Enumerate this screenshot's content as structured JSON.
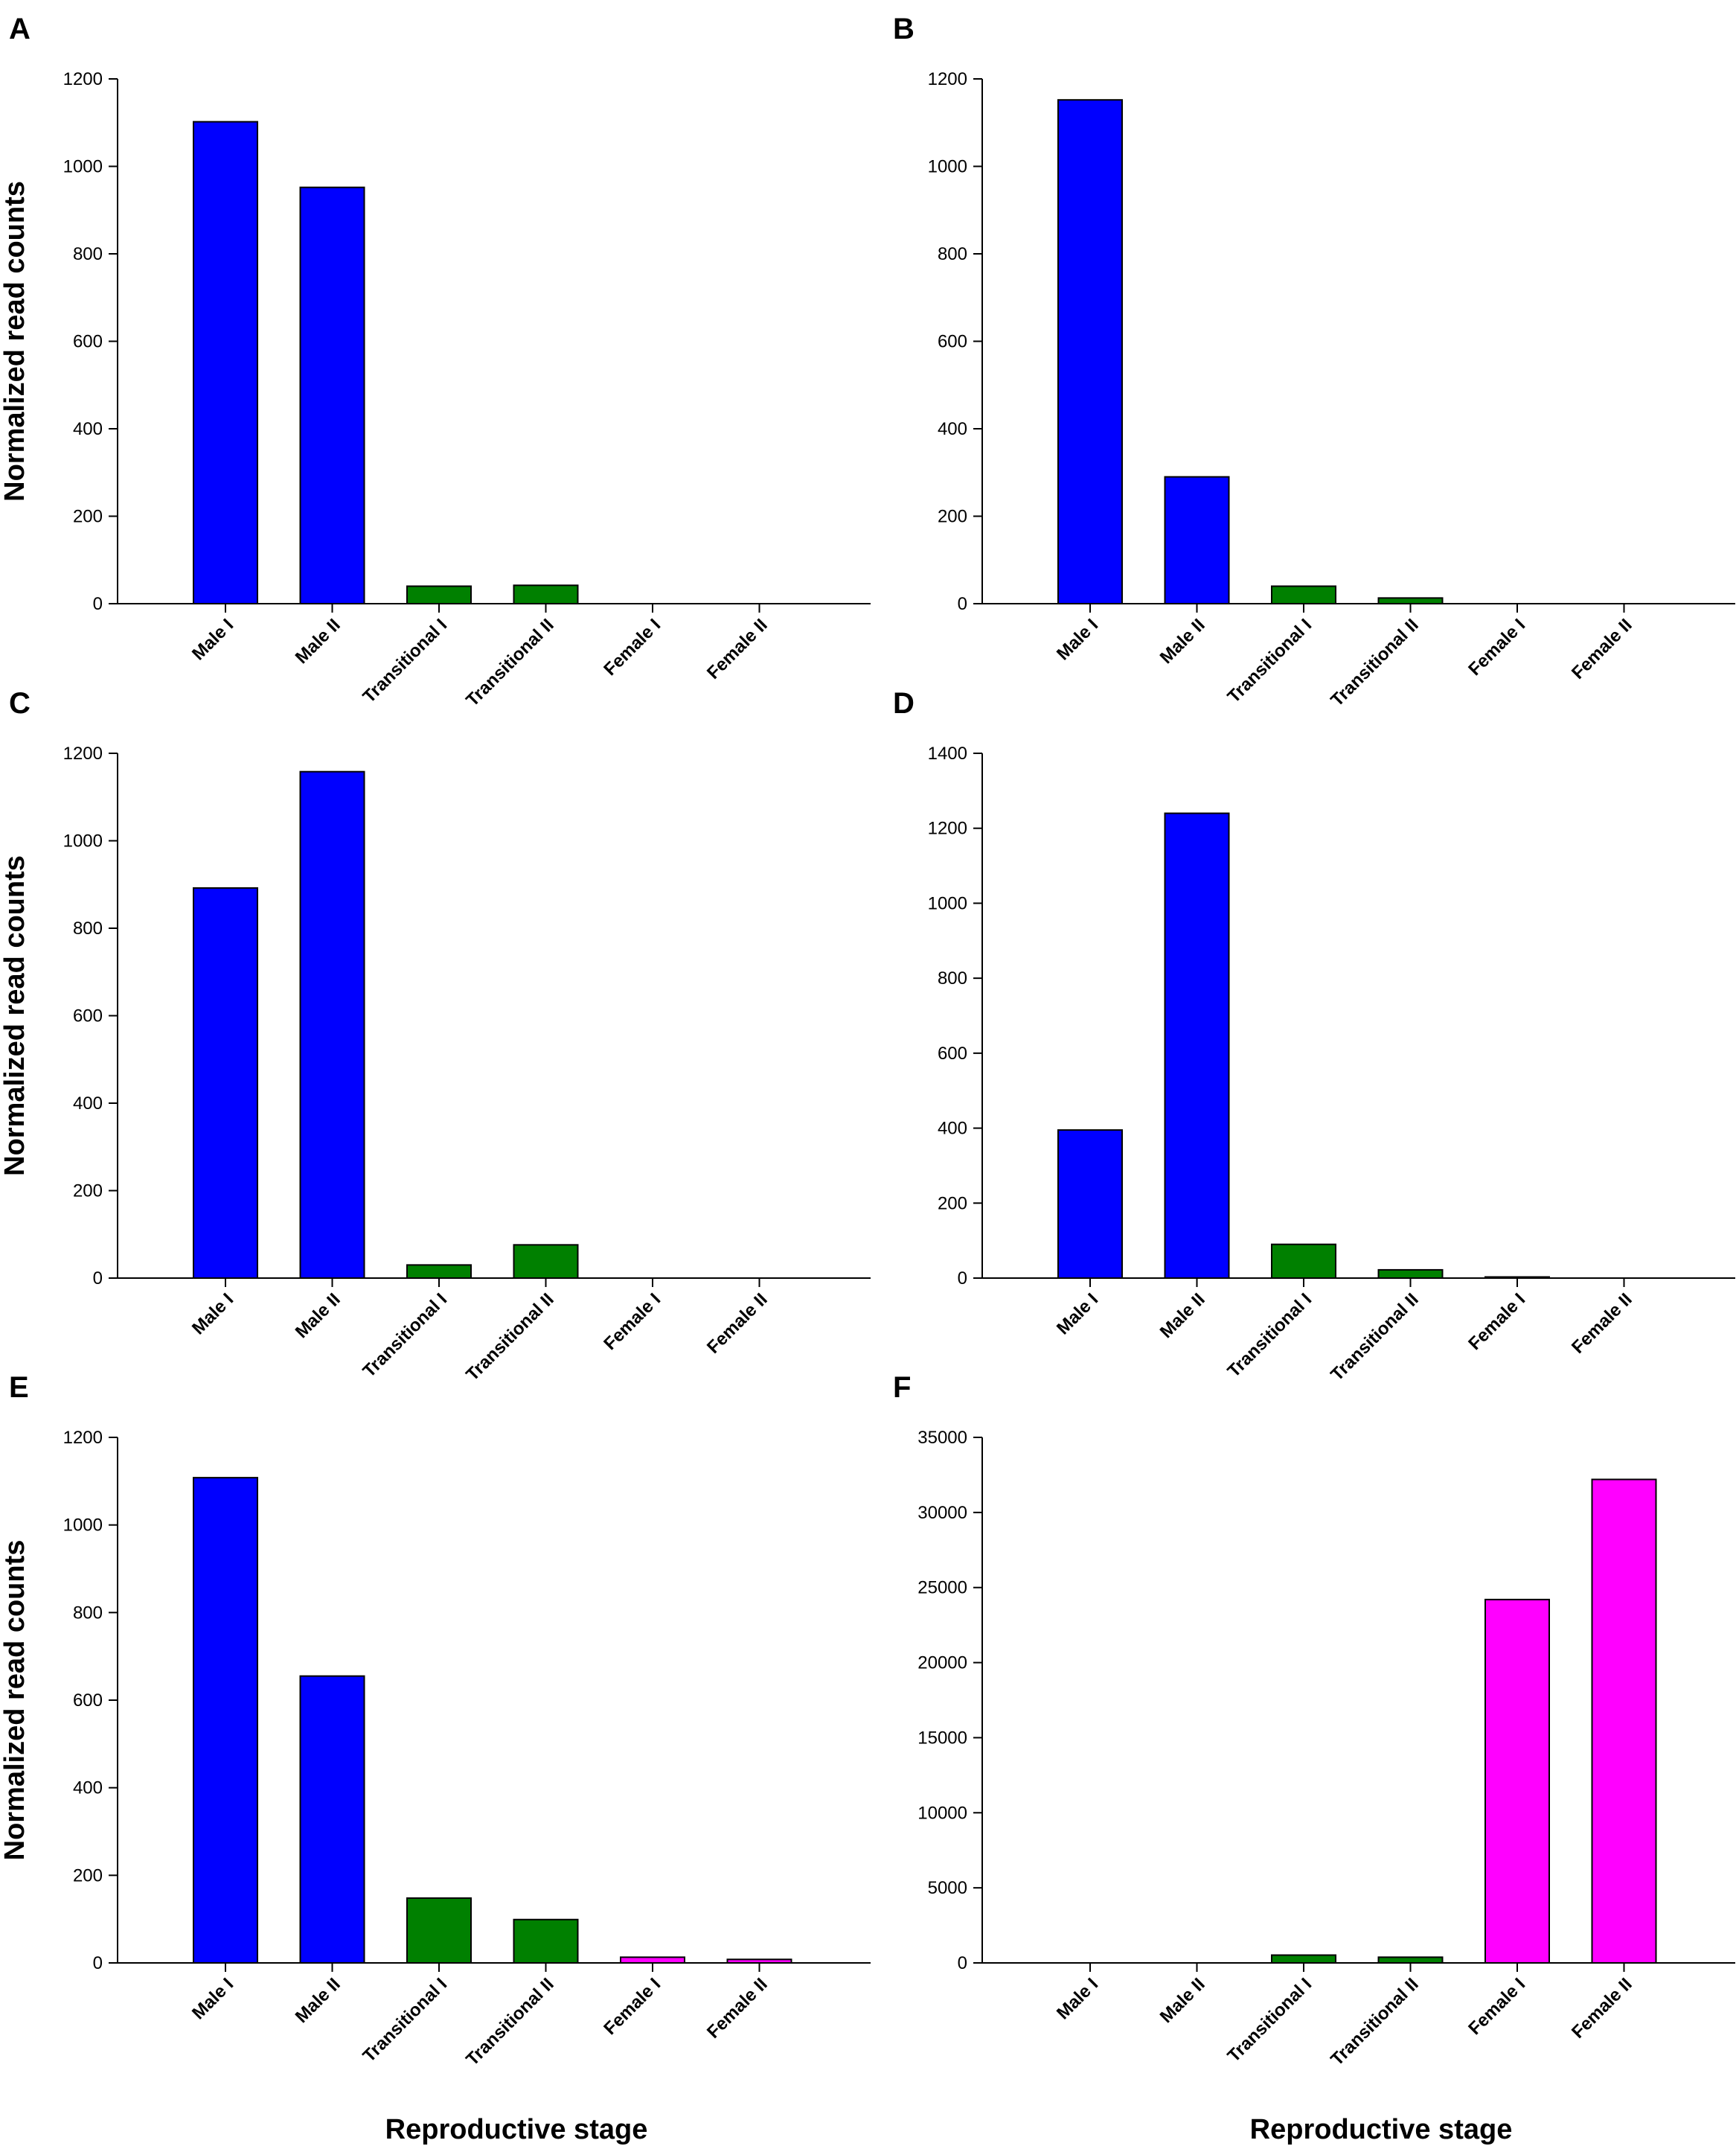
{
  "figure": {
    "xlabel": "Reproductive stage",
    "ylabel": "Normalized read counts"
  },
  "colors": {
    "male": "#0000ff",
    "transitional": "#008000",
    "female": "#ff00ff"
  },
  "chart_data": [
    {
      "panel": "A",
      "type": "bar",
      "categories": [
        "Male I",
        "Male II",
        "Transitional I",
        "Transitional II",
        "Female I",
        "Female II"
      ],
      "values": [
        1102,
        952,
        40,
        42,
        0,
        0
      ],
      "ylim": [
        0,
        1200
      ],
      "yticks": [
        0,
        200,
        400,
        600,
        800,
        1000,
        1200
      ],
      "ylabel": "Normalized read counts",
      "xlabel": "",
      "grid": false
    },
    {
      "panel": "B",
      "type": "bar",
      "categories": [
        "Male I",
        "Male II",
        "Transitional I",
        "Transitional II",
        "Female I",
        "Female II"
      ],
      "values": [
        1152,
        290,
        40,
        13,
        0,
        0
      ],
      "ylim": [
        0,
        1200
      ],
      "yticks": [
        0,
        200,
        400,
        600,
        800,
        1000,
        1200
      ],
      "ylabel": "",
      "xlabel": "",
      "grid": false
    },
    {
      "panel": "C",
      "type": "bar",
      "categories": [
        "Male I",
        "Male II",
        "Transitional I",
        "Transitional II",
        "Female I",
        "Female II"
      ],
      "values": [
        892,
        1158,
        30,
        76,
        0,
        0
      ],
      "ylim": [
        0,
        1200
      ],
      "yticks": [
        0,
        200,
        400,
        600,
        800,
        1000,
        1200
      ],
      "ylabel": "Normalized read counts",
      "xlabel": "",
      "grid": false
    },
    {
      "panel": "D",
      "type": "bar",
      "categories": [
        "Male I",
        "Male II",
        "Transitional I",
        "Transitional II",
        "Female I",
        "Female II"
      ],
      "values": [
        395,
        1240,
        90,
        22,
        3,
        0
      ],
      "ylim": [
        0,
        1400
      ],
      "yticks": [
        0,
        200,
        400,
        600,
        800,
        1000,
        1200,
        1400
      ],
      "ylabel": "",
      "xlabel": "",
      "grid": false
    },
    {
      "panel": "E",
      "type": "bar",
      "categories": [
        "Male I",
        "Male II",
        "Transitional I",
        "Transitional II",
        "Female I",
        "Female II"
      ],
      "values": [
        1108,
        655,
        148,
        99,
        13,
        8
      ],
      "ylim": [
        0,
        1200
      ],
      "yticks": [
        0,
        200,
        400,
        600,
        800,
        1000,
        1200
      ],
      "ylabel": "Normalized read counts",
      "xlabel": "Reproductive stage",
      "grid": false
    },
    {
      "panel": "F",
      "type": "bar",
      "categories": [
        "Male I",
        "Male II",
        "Transitional I",
        "Transitional II",
        "Female I",
        "Female II"
      ],
      "values": [
        0,
        0,
        520,
        380,
        24200,
        32200
      ],
      "ylim": [
        0,
        35000
      ],
      "yticks": [
        0,
        5000,
        10000,
        15000,
        20000,
        25000,
        30000,
        35000
      ],
      "ylabel": "",
      "xlabel": "Reproductive stage",
      "grid": false
    }
  ]
}
